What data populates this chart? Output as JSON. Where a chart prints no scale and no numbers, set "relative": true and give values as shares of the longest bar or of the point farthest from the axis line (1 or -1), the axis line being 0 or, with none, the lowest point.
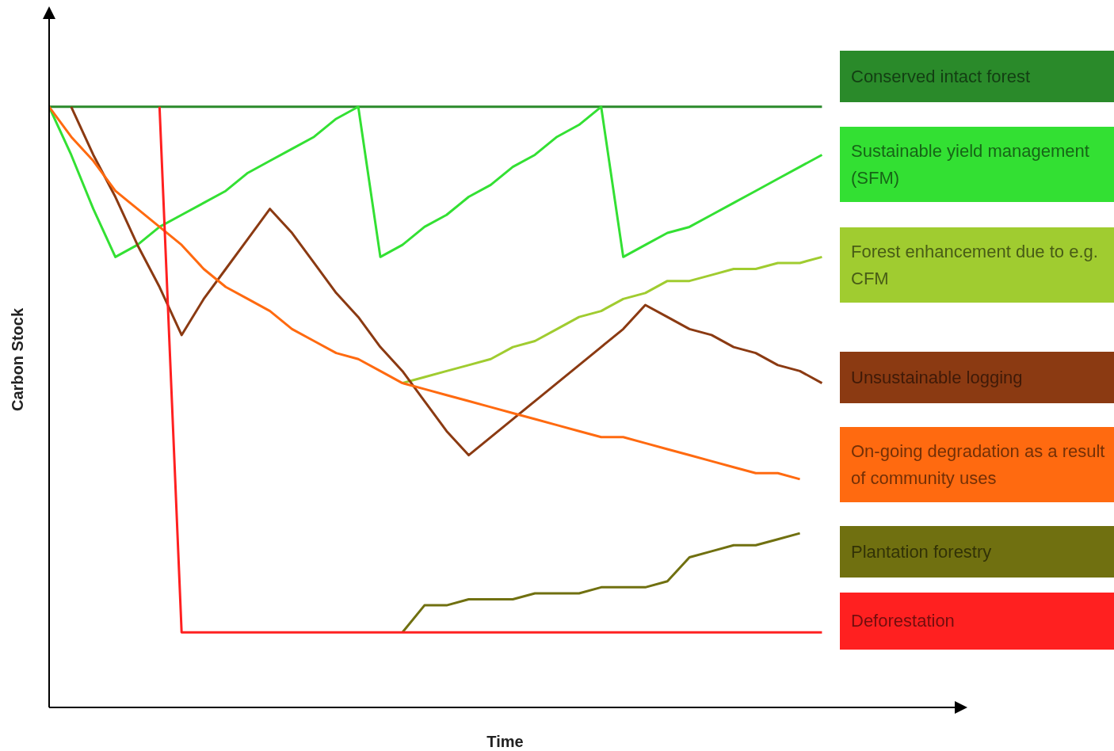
{
  "chart_data": {
    "type": "line",
    "relative": true,
    "xlabel": "Time",
    "ylabel": "Carbon Stock",
    "legend": "right",
    "marker": "none",
    "line_style": "solid",
    "categories": [
      null,
      null,
      null,
      null,
      null,
      null,
      null,
      null,
      null,
      null,
      null,
      null,
      null,
      null,
      null,
      null,
      null,
      null,
      null,
      null,
      null,
      null,
      null,
      null,
      null,
      null,
      null,
      null,
      null,
      null,
      null,
      null,
      null,
      null,
      null,
      null
    ],
    "series": [
      {
        "name": "Conserved intact forest",
        "color": "#2a8a2a",
        "values": [
          1,
          1,
          1,
          1,
          1,
          1,
          1,
          1,
          1,
          1,
          1,
          1,
          1,
          1,
          1,
          1,
          1,
          1,
          1,
          1,
          1,
          1,
          1,
          1,
          1,
          1,
          1,
          1,
          1,
          1,
          1,
          1,
          1,
          1,
          1,
          1
        ]
      },
      {
        "name": "Sustainable yield management  (SFM)",
        "color": "#33e033",
        "values": [
          1,
          0.92,
          0.83,
          0.75,
          0.77,
          0.8,
          0.82,
          0.84,
          0.86,
          0.89,
          0.91,
          0.93,
          0.95,
          0.98,
          1,
          0.75,
          0.77,
          0.8,
          0.82,
          0.85,
          0.87,
          0.9,
          0.92,
          0.95,
          0.97,
          1,
          0.75,
          0.77,
          0.79,
          0.8,
          0.82,
          0.84,
          0.86,
          0.88,
          0.9,
          0.92
        ]
      },
      {
        "name": "Forest enhancement due to e.g. CFM",
        "color": "#a0cc30",
        "values": [
          null,
          null,
          null,
          null,
          null,
          null,
          null,
          null,
          null,
          null,
          null,
          null,
          null,
          null,
          null,
          null,
          0.54,
          0.55,
          0.56,
          0.57,
          0.58,
          0.6,
          0.61,
          0.63,
          0.65,
          0.66,
          0.68,
          0.69,
          0.71,
          0.71,
          0.72,
          0.73,
          0.73,
          0.74,
          0.74,
          0.75
        ]
      },
      {
        "name": "Unsustainable logging",
        "color": "#8b3a12",
        "values": [
          null,
          1,
          0.92,
          0.85,
          0.77,
          0.7,
          0.62,
          0.68,
          0.73,
          0.78,
          0.83,
          0.79,
          0.74,
          0.69,
          0.65,
          0.6,
          0.56,
          0.51,
          0.46,
          0.42,
          0.45,
          0.48,
          0.51,
          0.54,
          0.57,
          0.6,
          0.63,
          0.67,
          0.65,
          0.63,
          0.62,
          0.6,
          0.59,
          0.57,
          0.56,
          0.54
        ]
      },
      {
        "name": "On-going degradation as a result of community uses",
        "color": "#ff6a10",
        "values": [
          1,
          0.95,
          0.91,
          0.86,
          0.83,
          0.8,
          0.77,
          0.73,
          0.7,
          0.68,
          0.66,
          0.63,
          0.61,
          0.59,
          0.58,
          0.56,
          0.54,
          0.53,
          0.52,
          0.51,
          0.5,
          0.49,
          0.48,
          0.47,
          0.46,
          0.45,
          0.45,
          0.44,
          0.43,
          0.42,
          0.41,
          0.4,
          0.39,
          0.39,
          0.38,
          null
        ]
      },
      {
        "name": "Plantation  forestry",
        "color": "#707010",
        "values": [
          null,
          null,
          null,
          null,
          null,
          null,
          null,
          null,
          null,
          null,
          null,
          null,
          null,
          null,
          null,
          null,
          0.125,
          0.17,
          0.17,
          0.18,
          0.18,
          0.18,
          0.19,
          0.19,
          0.19,
          0.2,
          0.2,
          0.2,
          0.21,
          0.25,
          0.26,
          0.27,
          0.27,
          0.28,
          0.29,
          null
        ]
      },
      {
        "name": "Deforestation",
        "color": "#ff2020",
        "values": [
          null,
          null,
          null,
          null,
          null,
          1,
          0.125,
          0.125,
          0.125,
          0.125,
          0.125,
          0.125,
          0.125,
          0.125,
          0.125,
          0.125,
          0.125,
          0.125,
          0.125,
          0.125,
          0.125,
          0.125,
          0.125,
          0.125,
          0.125,
          0.125,
          0.125,
          0.125,
          0.125,
          0.125,
          0.125,
          0.125,
          0.125,
          0.125,
          0.125,
          0.125
        ]
      }
    ]
  }
}
